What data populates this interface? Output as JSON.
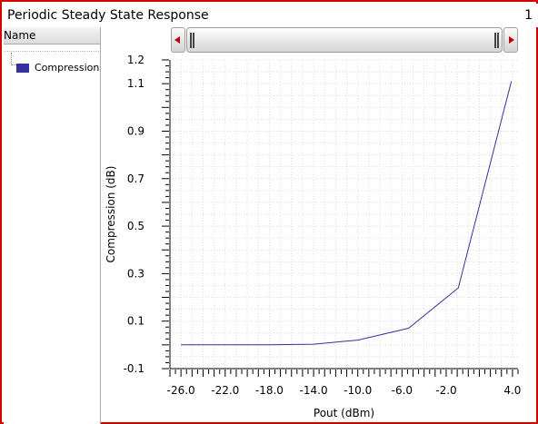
{
  "window": {
    "title": "Periodic Steady State Response",
    "page_number": "1"
  },
  "left_panel": {
    "header": "Name",
    "legend_label": "Compression",
    "legend_color": "#33339a"
  },
  "chart_data": {
    "type": "line",
    "title": "",
    "xlabel": "Pout (dBm)",
    "ylabel": "Compression (dB)",
    "xlim": [
      -27.0,
      4.5
    ],
    "ylim": [
      -0.1,
      1.2
    ],
    "xticks": [
      -26.0,
      -22.0,
      -18.0,
      -14.0,
      -10.0,
      -6.0,
      -2.0,
      4.0
    ],
    "xtick_labels": [
      "-26.0",
      "-22.0",
      "-18.0",
      "-14.0",
      "-10.0",
      "-6.0",
      "-2.0",
      "4.0"
    ],
    "yticks": [
      -0.1,
      0.1,
      0.3,
      0.5,
      0.7,
      0.9,
      1.1,
      1.2
    ],
    "ytick_labels": [
      "-0.1",
      "0.1",
      "0.3",
      "0.5",
      "0.7",
      "0.9",
      "1.1",
      "1.2"
    ],
    "grid": true,
    "series": [
      {
        "name": "Compression",
        "color": "#33339a",
        "x": [
          -26.0,
          -22.0,
          -18.0,
          -14.0,
          -10.0,
          -5.4,
          -0.9,
          3.9
        ],
        "y": [
          0.0,
          0.0,
          0.0,
          0.003,
          0.02,
          0.07,
          0.24,
          1.11
        ]
      }
    ]
  }
}
